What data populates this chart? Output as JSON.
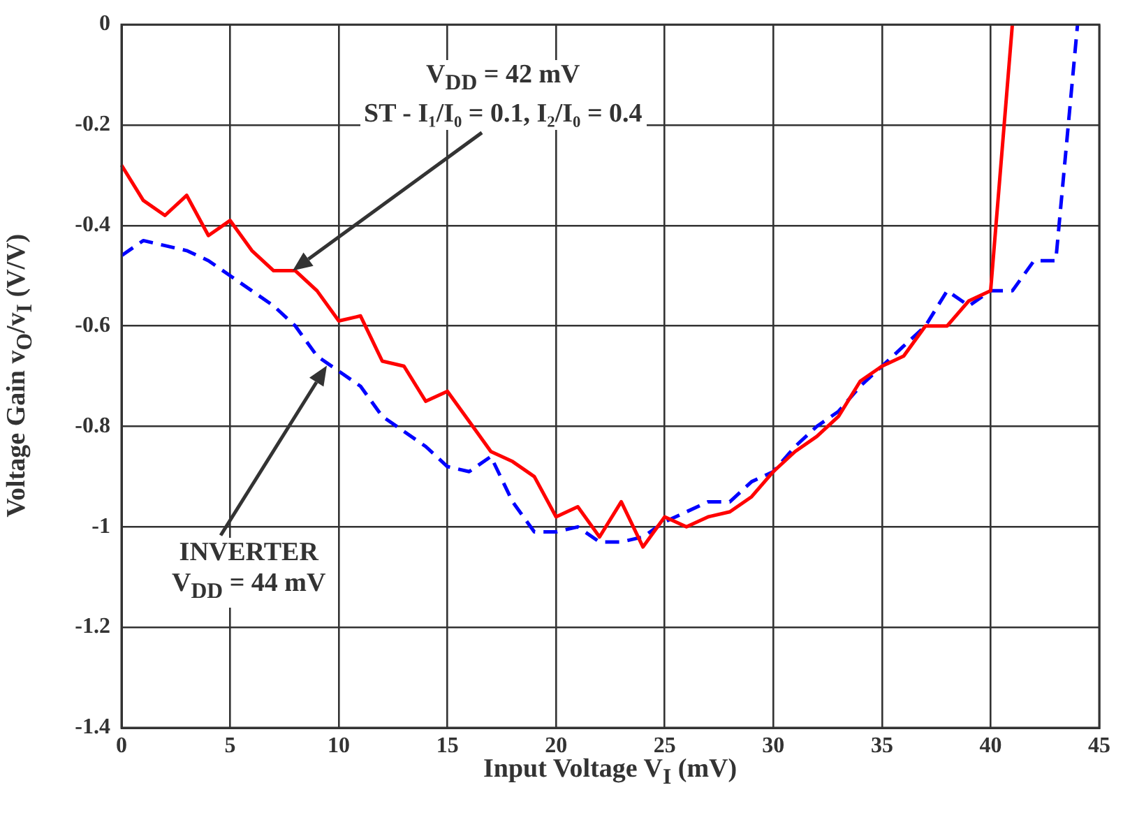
{
  "chart_data": {
    "type": "line",
    "xlabel": "Input Voltage V$_{I}$  (mV)",
    "ylabel": "Voltage Gain  v$_{O}$/v$_{I}$ (V/V)",
    "xlim": [
      0,
      45
    ],
    "xticks": [
      0,
      5,
      10,
      15,
      20,
      25,
      30,
      35,
      40,
      45
    ],
    "ylim": [
      -1.4,
      0
    ],
    "yticks": [
      -1.4,
      -1.2,
      -1,
      -0.8,
      -0.6,
      -0.4,
      -0.2,
      0
    ],
    "grid": true,
    "legend": false,
    "marker": "none",
    "series": [
      {
        "color": "#ff0000",
        "line_style": "solid",
        "x": [
          0,
          1,
          2,
          3,
          4,
          5,
          6,
          7,
          8,
          9,
          10,
          11,
          12,
          13,
          14,
          15,
          16,
          17,
          18,
          19,
          20,
          21,
          22,
          23,
          24,
          25,
          26,
          27,
          28,
          29,
          30,
          31,
          32,
          33,
          34,
          35,
          36,
          37,
          38,
          39,
          40,
          41
        ],
        "values": [
          -0.28,
          -0.35,
          -0.38,
          -0.34,
          -0.42,
          -0.39,
          -0.45,
          -0.49,
          -0.49,
          -0.53,
          -0.59,
          -0.58,
          -0.67,
          -0.68,
          -0.75,
          -0.73,
          -0.79,
          -0.85,
          -0.87,
          -0.9,
          -0.98,
          -0.96,
          -1.02,
          -0.95,
          -1.04,
          -0.98,
          -1,
          -0.98,
          -0.97,
          -0.94,
          -0.89,
          -0.85,
          -0.82,
          -0.78,
          -0.71,
          -0.68,
          -0.66,
          -0.6,
          -0.6,
          -0.55,
          -0.53,
          0
        ]
      },
      {
        "color": "#0000ff",
        "line_style": "dashed",
        "x": [
          0,
          1,
          2,
          3,
          4,
          5,
          6,
          7,
          8,
          9,
          10,
          11,
          12,
          13,
          14,
          15,
          16,
          17,
          18,
          19,
          20,
          21,
          22,
          23,
          24,
          25,
          26,
          27,
          28,
          29,
          30,
          31,
          32,
          33,
          34,
          35,
          36,
          37,
          38,
          39,
          40,
          41,
          42,
          43,
          44
        ],
        "values": [
          -0.46,
          -0.43,
          -0.44,
          -0.45,
          -0.47,
          -0.5,
          -0.53,
          -0.56,
          -0.6,
          -0.66,
          -0.69,
          -0.72,
          -0.78,
          -0.81,
          -0.84,
          -0.88,
          -0.89,
          -0.86,
          -0.95,
          -1.01,
          -1.01,
          -1,
          -1.03,
          -1.03,
          -1.02,
          -0.99,
          -0.97,
          -0.95,
          -0.95,
          -0.91,
          -0.89,
          -0.84,
          -0.8,
          -0.77,
          -0.72,
          -0.68,
          -0.64,
          -0.6,
          -0.53,
          -0.56,
          -0.53,
          -0.53,
          -0.47,
          -0.47,
          0
        ]
      }
    ],
    "annotations": [
      "V$_{DD}$ = 42 mV\nST - I₁/I₀ = 0.1, I₂/I₀ = 0.4",
      "INVERTER\nV$_{DD}$ = 44 mV"
    ]
  }
}
